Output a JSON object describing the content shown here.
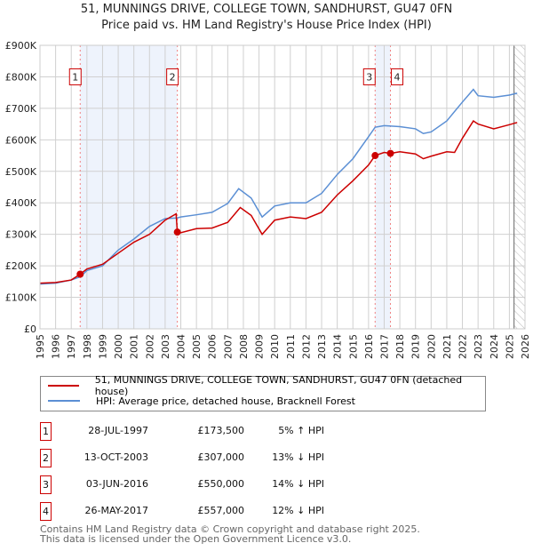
{
  "chart_data": {
    "type": "line",
    "title": "51, MUNNINGS DRIVE, COLLEGE TOWN, SANDHURST, GU47 0FN",
    "subtitle": "Price paid vs. HM Land Registry's House Price Index (HPI)",
    "xlim": [
      1995,
      2026
    ],
    "ylim": [
      0,
      900000
    ],
    "y_ticks": [
      {
        "v": 0,
        "label": "£0"
      },
      {
        "v": 100000,
        "label": "£100K"
      },
      {
        "v": 200000,
        "label": "£200K"
      },
      {
        "v": 300000,
        "label": "£300K"
      },
      {
        "v": 400000,
        "label": "£400K"
      },
      {
        "v": 500000,
        "label": "£500K"
      },
      {
        "v": 600000,
        "label": "£600K"
      },
      {
        "v": 700000,
        "label": "£700K"
      },
      {
        "v": 800000,
        "label": "£800K"
      },
      {
        "v": 900000,
        "label": "£900K"
      }
    ],
    "x_ticks": [
      "1995",
      "1996",
      "1997",
      "1998",
      "1999",
      "2000",
      "2001",
      "2002",
      "2003",
      "2004",
      "2005",
      "2006",
      "2007",
      "2008",
      "2009",
      "2010",
      "2011",
      "2012",
      "2013",
      "2014",
      "2015",
      "2016",
      "2017",
      "2018",
      "2019",
      "2020",
      "2021",
      "2022",
      "2023",
      "2024",
      "2025",
      "2026"
    ],
    "grid": true,
    "series": [
      {
        "name": "51, MUNNINGS DRIVE, COLLEGE TOWN, SANDHURST, GU47 0FN (detached house)",
        "color": "#cc0000",
        "x": [
          1995,
          1996,
          1997,
          1997.57,
          1998,
          1999,
          2000,
          2001,
          2002,
          2003,
          2003.7,
          2003.78,
          2004,
          2005,
          2006,
          2007,
          2007.8,
          2008.5,
          2009.2,
          2010,
          2011,
          2012,
          2013,
          2014,
          2015,
          2016,
          2016.42,
          2017,
          2017.4,
          2018,
          2019,
          2019.5,
          2020,
          2021,
          2021.5,
          2022,
          2022.7,
          2023,
          2024,
          2025,
          2025.5
        ],
        "y": [
          145000,
          147000,
          155000,
          173500,
          190000,
          205000,
          240000,
          275000,
          300000,
          345000,
          365000,
          307000,
          305000,
          318000,
          320000,
          338000,
          385000,
          360000,
          300000,
          345000,
          355000,
          350000,
          370000,
          425000,
          470000,
          520000,
          550000,
          560000,
          557000,
          562000,
          555000,
          540000,
          548000,
          562000,
          560000,
          605000,
          660000,
          650000,
          635000,
          648000,
          655000
        ]
      },
      {
        "name": "HPI: Average price, detached house, Bracknell Forest",
        "color": "#5b8fd4",
        "x": [
          1995,
          1996,
          1997,
          1997.57,
          1998,
          1999,
          2000,
          2001,
          2002,
          2003,
          2003.78,
          2004,
          2005,
          2006,
          2007,
          2007.7,
          2008.5,
          2009.2,
          2010,
          2011,
          2012,
          2013,
          2014,
          2015,
          2016,
          2016.42,
          2017,
          2018,
          2019,
          2019.5,
          2020,
          2021,
          2022,
          2022.7,
          2023,
          2024,
          2025,
          2025.5
        ],
        "y": [
          142000,
          145000,
          155000,
          165000,
          185000,
          200000,
          250000,
          285000,
          325000,
          350000,
          352000,
          355000,
          362000,
          370000,
          398000,
          445000,
          415000,
          355000,
          390000,
          400000,
          400000,
          430000,
          490000,
          540000,
          610000,
          640000,
          645000,
          642000,
          635000,
          620000,
          625000,
          660000,
          720000,
          760000,
          740000,
          735000,
          742000,
          748000
        ]
      }
    ],
    "sales": [
      {
        "n": "1",
        "date": "28-JUL-1997",
        "x": 1997.57,
        "price_value": 173500,
        "price": "£173,500",
        "hpi": "5% ↑ HPI"
      },
      {
        "n": "2",
        "date": "13-OCT-2003",
        "x": 2003.78,
        "price_value": 307000,
        "price": "£307,000",
        "hpi": "13% ↓ HPI"
      },
      {
        "n": "3",
        "date": "03-JUN-2016",
        "x": 2016.42,
        "price_value": 550000,
        "price": "£550,000",
        "hpi": "14% ↓ HPI"
      },
      {
        "n": "4",
        "date": "26-MAY-2017",
        "x": 2017.4,
        "price_value": 557000,
        "price": "£557,000",
        "hpi": "12% ↓ HPI"
      }
    ],
    "shaded_ranges": [
      [
        1997.57,
        2003.78
      ],
      [
        2016.42,
        2017.4
      ]
    ],
    "hatched_from": 2025.3,
    "marker_label_value": 800000
  },
  "footer": {
    "line1": "Contains HM Land Registry data © Crown copyright and database right 2025.",
    "line2": "This data is licensed under the Open Government Licence v3.0."
  }
}
